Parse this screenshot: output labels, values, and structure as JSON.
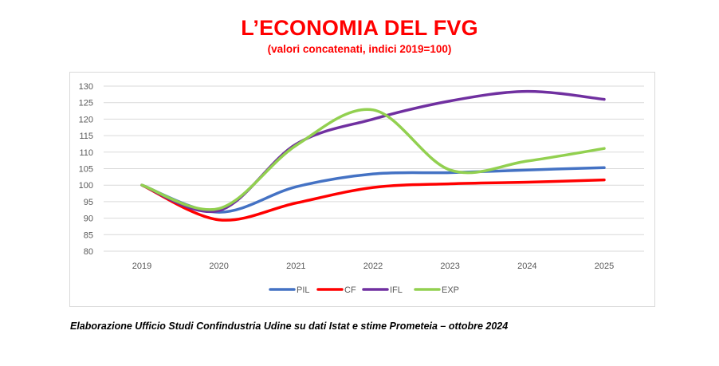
{
  "header": {
    "title": "L’ECONOMIA DEL FVG",
    "subtitle": "(valori concatenati, indici 2019=100)"
  },
  "footnote": "Elaborazione Ufficio Studi Confindustria Udine su dati Istat e stime Prometeia – ottobre 2024",
  "chart_data": {
    "type": "line",
    "title": "L’ECONOMIA DEL FVG",
    "subtitle": "(valori concatenati, indici 2019=100)",
    "xlabel": "",
    "ylabel": "",
    "categories": [
      "2019",
      "2020",
      "2021",
      "2022",
      "2023",
      "2024",
      "2025"
    ],
    "ylim": [
      80,
      130
    ],
    "yticks": [
      "130",
      "125",
      "120",
      "115",
      "110",
      "105",
      "100",
      "95",
      "90",
      "85",
      "80"
    ],
    "grid": "horizontal",
    "legend_position": "bottom",
    "smooth": true,
    "series": [
      {
        "name": "PIL",
        "color": "#4472c4",
        "values": [
          100,
          91.8,
          99.5,
          103.4,
          103.8,
          104.6,
          105.3
        ]
      },
      {
        "name": "CF",
        "color": "#ff0000",
        "values": [
          100,
          89.5,
          94.6,
          99.3,
          100.4,
          100.9,
          101.6
        ]
      },
      {
        "name": "IFL",
        "color": "#7030a0",
        "values": [
          100,
          92.3,
          112.4,
          120.0,
          125.5,
          128.4,
          126.0
        ]
      },
      {
        "name": "EXP",
        "color": "#92d050",
        "values": [
          100,
          92.9,
          112.0,
          122.8,
          104.6,
          107.3,
          111.1
        ]
      }
    ]
  }
}
